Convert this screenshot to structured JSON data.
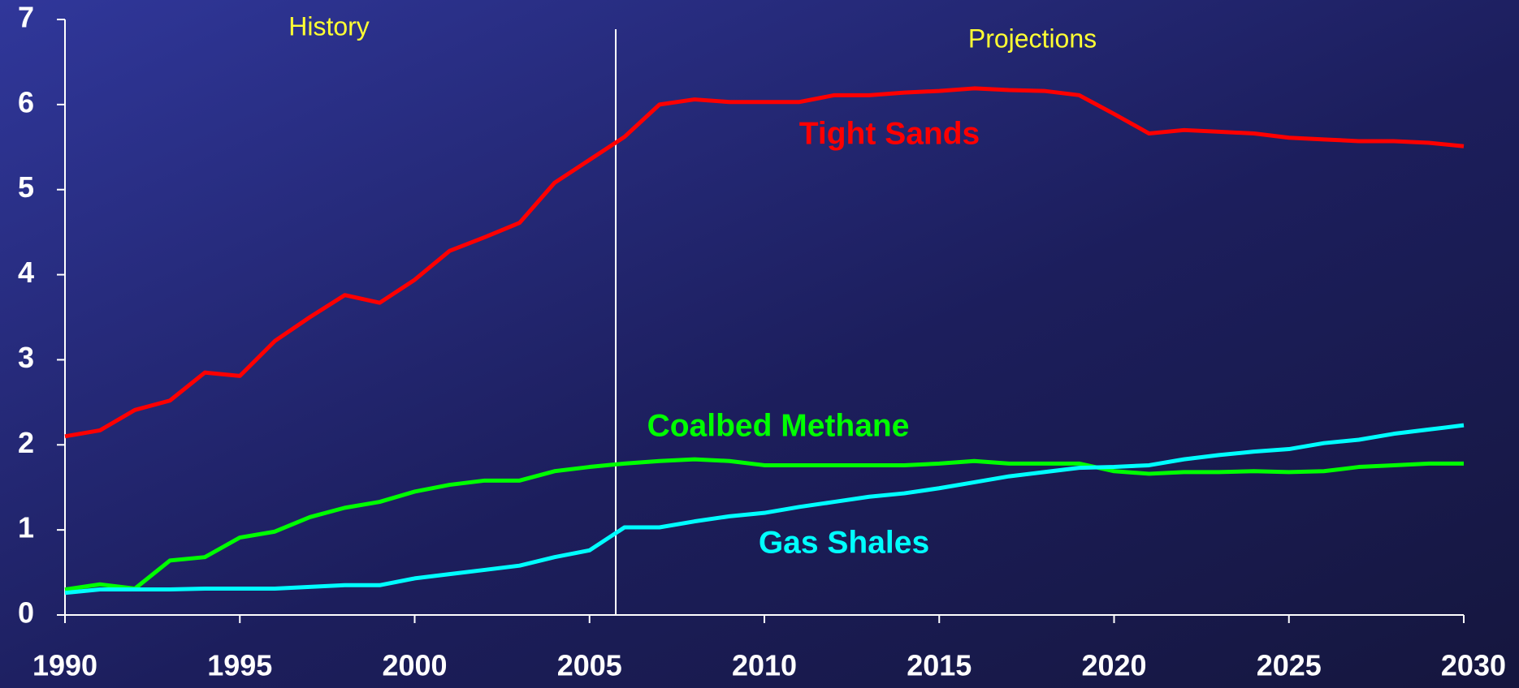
{
  "chart_data": {
    "type": "line",
    "annotations": [
      "History",
      "Projections"
    ],
    "divider": 2005.75,
    "x": [
      1990,
      1991,
      1992,
      1993,
      1994,
      1995,
      1996,
      1997,
      1998,
      1999,
      2000,
      2001,
      2002,
      2003,
      2004,
      2005,
      2006,
      2007,
      2008,
      2009,
      2010,
      2011,
      2012,
      2013,
      2014,
      2015,
      2016,
      2017,
      2018,
      2019,
      2020,
      2021,
      2022,
      2023,
      2024,
      2025,
      2026,
      2027,
      2028,
      2029,
      2030
    ],
    "series": [
      {
        "name": "Tight Sands",
        "color": "#ff0000",
        "values": [
          2.1,
          2.17,
          2.41,
          2.52,
          2.85,
          2.81,
          3.22,
          3.5,
          3.76,
          3.67,
          3.94,
          4.28,
          4.44,
          4.61,
          5.08,
          5.35,
          5.62,
          6.0,
          6.06,
          6.03,
          6.03,
          6.03,
          6.11,
          6.11,
          6.14,
          6.16,
          6.19,
          6.17,
          6.16,
          6.11,
          5.89,
          5.66,
          5.7,
          5.68,
          5.66,
          5.61,
          5.59,
          5.57,
          5.57,
          5.55,
          5.51
        ]
      },
      {
        "name": "Coalbed Methane",
        "color": "#00ff00",
        "values": [
          0.3,
          0.36,
          0.31,
          0.64,
          0.68,
          0.91,
          0.98,
          1.15,
          1.26,
          1.33,
          1.45,
          1.53,
          1.58,
          1.58,
          1.69,
          1.74,
          1.78,
          1.81,
          1.83,
          1.81,
          1.76,
          1.76,
          1.76,
          1.76,
          1.76,
          1.78,
          1.81,
          1.78,
          1.78,
          1.78,
          1.69,
          1.66,
          1.68,
          1.68,
          1.69,
          1.68,
          1.69,
          1.74,
          1.76,
          1.78,
          1.78
        ]
      },
      {
        "name": "Gas Shales",
        "color": "#00ffff",
        "values": [
          0.26,
          0.3,
          0.3,
          0.3,
          0.31,
          0.31,
          0.31,
          0.33,
          0.35,
          0.35,
          0.43,
          0.48,
          0.53,
          0.58,
          0.68,
          0.76,
          1.03,
          1.03,
          1.1,
          1.16,
          1.2,
          1.27,
          1.33,
          1.39,
          1.43,
          1.49,
          1.56,
          1.63,
          1.68,
          1.73,
          1.74,
          1.76,
          1.83,
          1.88,
          1.92,
          1.95,
          2.02,
          2.06,
          2.13,
          2.18,
          2.23
        ]
      }
    ],
    "xlim": [
      1990,
      2030
    ],
    "xticks": [
      1990,
      1995,
      2000,
      2005,
      2010,
      2015,
      2020,
      2025,
      2030
    ],
    "ylim": [
      0,
      7
    ],
    "yticks": [
      0,
      1,
      2,
      3,
      4,
      5,
      6,
      7
    ]
  }
}
